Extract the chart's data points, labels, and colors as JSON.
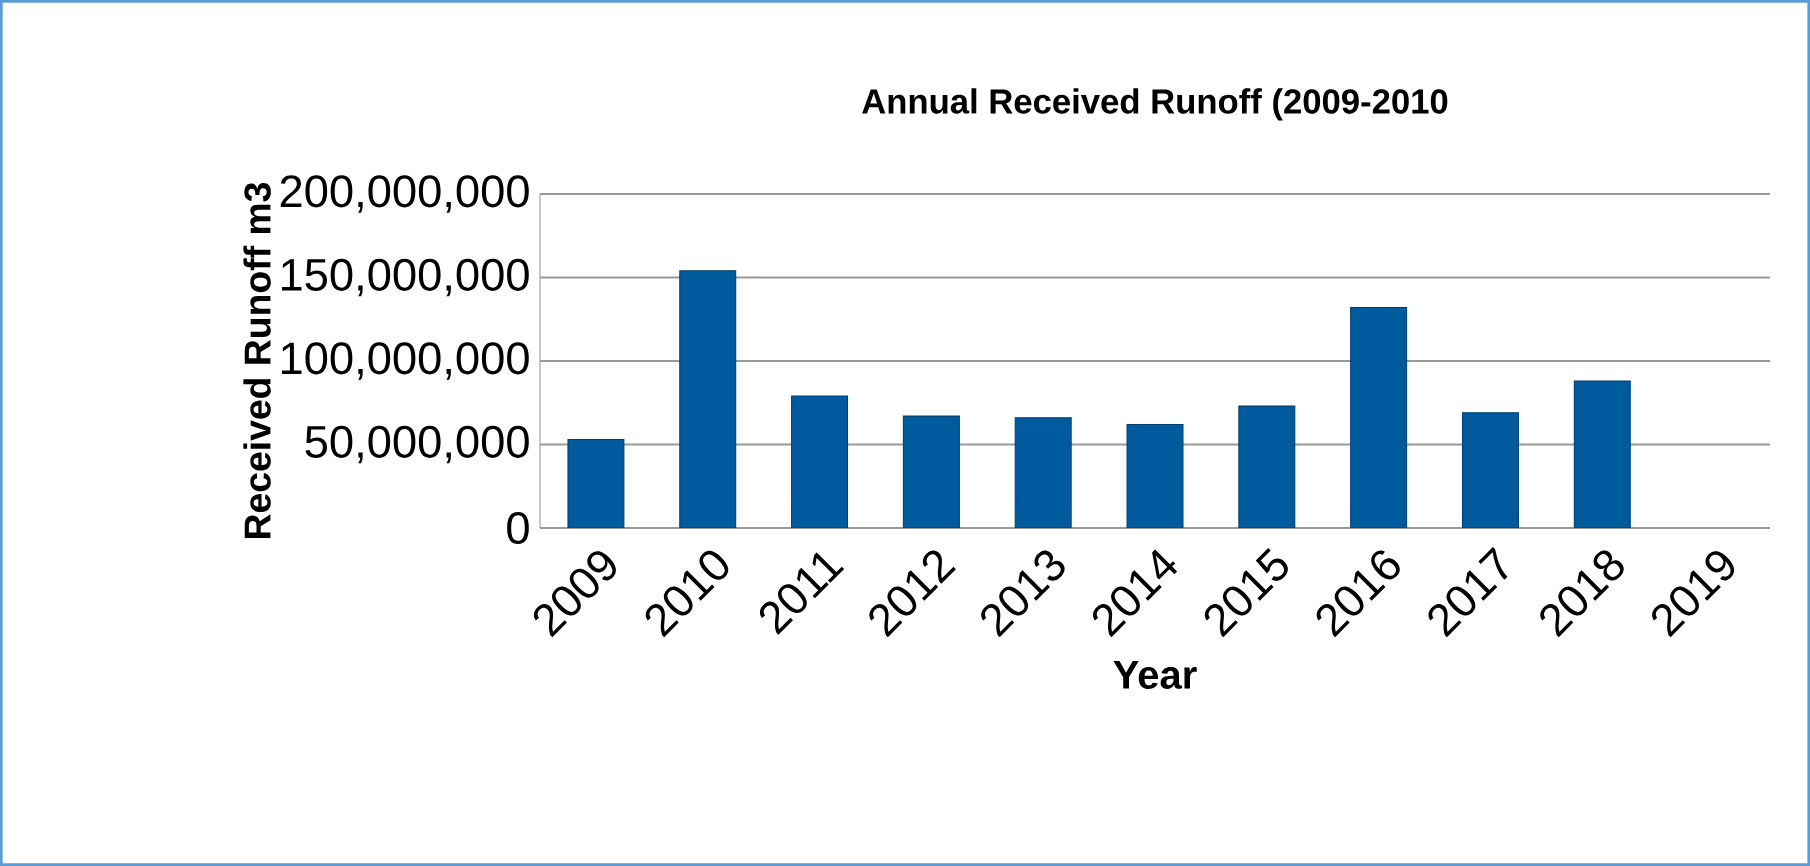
{
  "chart_data": {
    "type": "bar",
    "title": "Annual Received Runoff (2009-2010",
    "xlabel": "Year",
    "ylabel": "Received Runoff m3",
    "categories": [
      "2009",
      "2010",
      "2011",
      "2012",
      "2013",
      "2014",
      "2015",
      "2016",
      "2017",
      "2018",
      "2019"
    ],
    "values": [
      53000000,
      154000000,
      79000000,
      67000000,
      66000000,
      62000000,
      73000000,
      132000000,
      69000000,
      88000000,
      null
    ],
    "color": "#005a9e",
    "ylim": [
      0,
      200000000
    ],
    "yticks": [
      {
        "value": 0,
        "label": "0"
      },
      {
        "value": 50000000,
        "label": "50,000,000"
      },
      {
        "value": 100000000,
        "label": "100,000,000"
      },
      {
        "value": 150000000,
        "label": "150,000,000"
      },
      {
        "value": 200000000,
        "label": "200,000,000"
      }
    ],
    "grid": "y"
  }
}
